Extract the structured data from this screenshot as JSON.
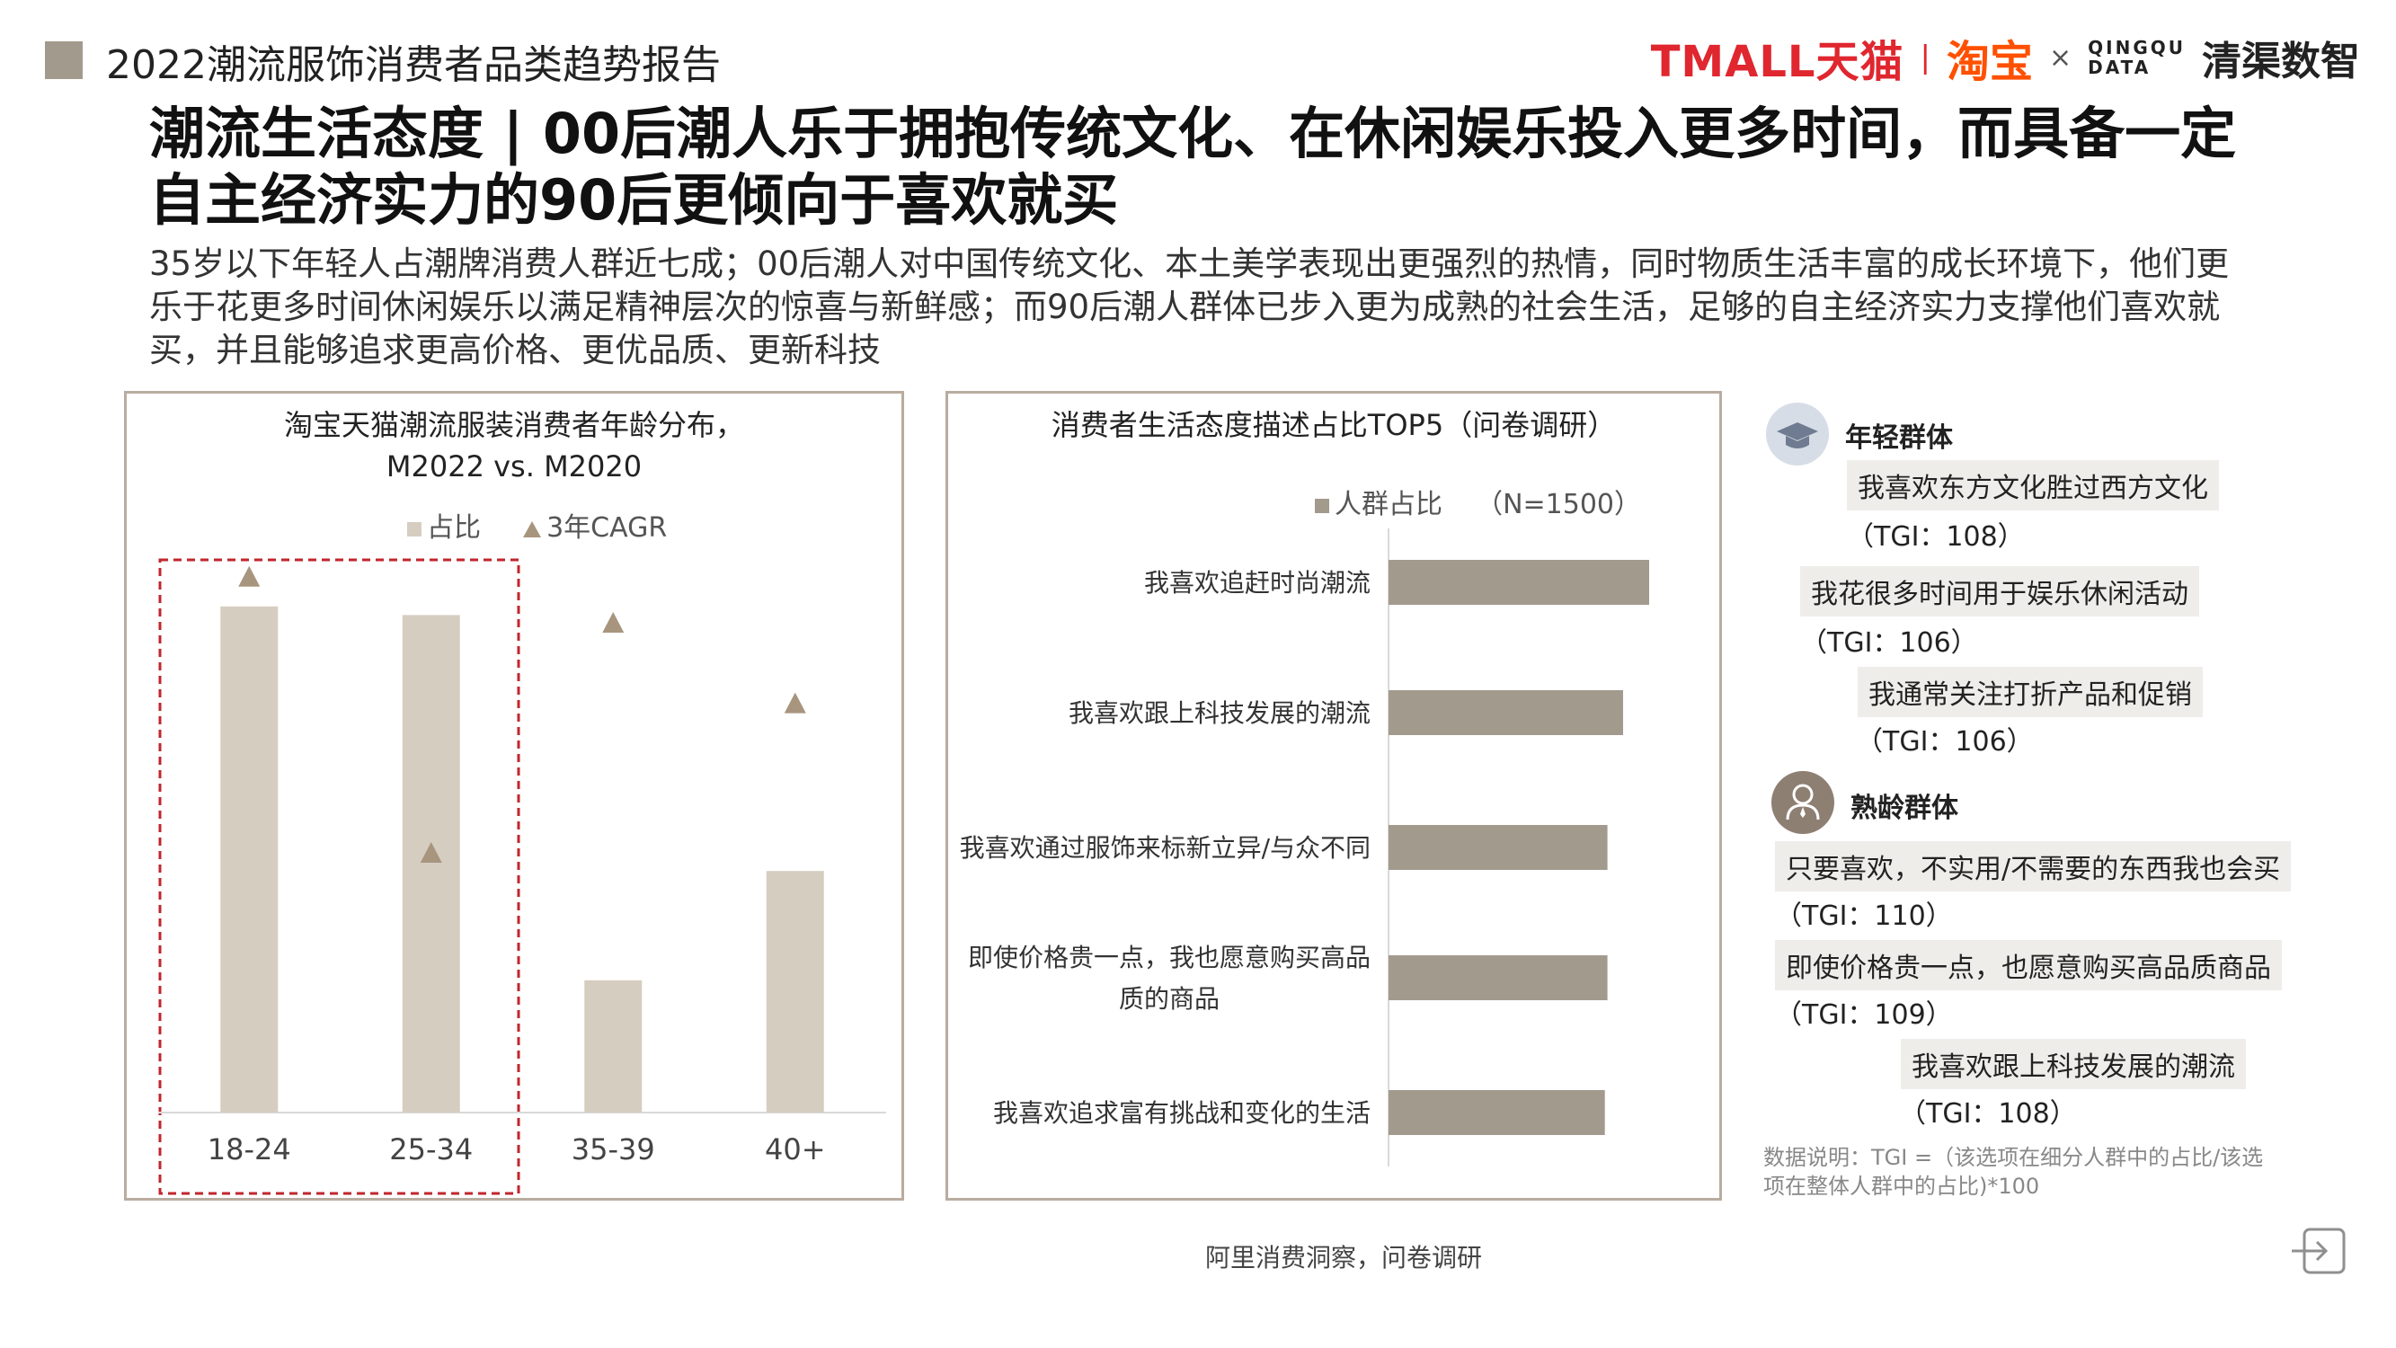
{
  "header": {
    "report_title": "2022潮流服饰消费者品类趋势报告",
    "logos": {
      "tmall": "TMALL天猫",
      "taobao": "淘宝",
      "times": "×",
      "qingqu_en_1": "QINGQU",
      "qingqu_en_2": "DATA",
      "qingqu_cn": "清渠数智"
    },
    "accent_color": "#a39a8e"
  },
  "main": {
    "title": "潮流生活态度 | 00后潮人乐于拥抱传统文化、在休闲娱乐投入更多时间，而具备一定自主经济实力的90后更倾向于喜欢就买",
    "subtitle": "35岁以下年轻人占潮牌消费人群近七成；00后潮人对中国传统文化、本土美学表现出更强烈的热情，同时物质生活丰富的成长环境下，他们更乐于花更多时间休闲娱乐以满足精神层次的惊喜与新鲜感；而90后潮人群体已步入更为成熟的社会生活，足够的自主经济实力支撑他们喜欢就买，并且能够追求更高价格、更优品质、更新科技"
  },
  "chart_data": [
    {
      "type": "bar",
      "title_line1": "淘宝天猫潮流服装消费者年龄分布，",
      "title_line2": "M2022 vs. M2020",
      "legend": [
        "占比",
        "3年CAGR"
      ],
      "categories": [
        "18-24",
        "25-34",
        "35-39",
        "40+"
      ],
      "series": [
        {
          "name": "占比",
          "marker": "bar",
          "values": [
            0.88,
            0.865,
            0.23,
            0.42
          ]
        },
        {
          "name": "3年CAGR",
          "marker": "triangle",
          "values": [
            0.93,
            0.45,
            0.85,
            0.71
          ]
        }
      ],
      "highlight_categories": [
        "18-24",
        "25-34"
      ],
      "ylim": [
        0,
        1
      ],
      "axis_values_shown": false,
      "colors": {
        "bar": "#d6cdc1",
        "triangle": "#a8957e",
        "highlight_box": "#c0262d"
      }
    },
    {
      "type": "bar",
      "orientation": "horizontal",
      "title": "消费者生活态度描述占比TOP5（问卷调研）",
      "legend": [
        "人群占比",
        "（N=1500）"
      ],
      "categories": [
        "我喜欢追赶时尚潮流",
        "我喜欢跟上科技发展的潮流",
        "我喜欢通过服饰来标新立异/与众不同",
        "即使价格贵一点，我也愿意购买高品质的商品",
        "我喜欢追求富有挑战和变化的生活"
      ],
      "category_display": [
        [
          "我喜欢追赶时尚潮流"
        ],
        [
          "我喜欢跟上科技发展的潮流"
        ],
        [
          "我喜欢通过服饰来标新立异/与众不同"
        ],
        [
          "即使价格贵一点，我也愿意购买高品",
          "质的商品"
        ],
        [
          "我喜欢追求富有挑战和变化的生活"
        ]
      ],
      "series": [
        {
          "name": "人群占比",
          "values": [
            1.0,
            0.9,
            0.84,
            0.84,
            0.83
          ]
        }
      ],
      "xlim": [
        0,
        1
      ],
      "axis_values_shown": false,
      "colors": {
        "bar": "#a39a8e"
      }
    }
  ],
  "right_panel": {
    "groups": [
      {
        "title": "年轻群体",
        "icon": "graduation-cap-icon",
        "items": [
          {
            "statement": "我喜欢东方文化胜过西方文化",
            "tgi": "（TGI：108）"
          },
          {
            "statement": "我花很多时间用于娱乐休闲活动",
            "tgi": "（TGI：106）"
          },
          {
            "statement": "我通常关注打折产品和促销",
            "tgi": "（TGI：106）"
          }
        ]
      },
      {
        "title": "熟龄群体",
        "icon": "business-person-icon",
        "items": [
          {
            "statement": "只要喜欢，不实用/不需要的东西我也会买",
            "tgi": "（TGI：110）"
          },
          {
            "statement": "即使价格贵一点，也愿意购买高品质商品",
            "tgi": "（TGI：109）"
          },
          {
            "statement": "我喜欢跟上科技发展的潮流",
            "tgi": "（TGI：108）"
          }
        ]
      }
    ],
    "note": "数据说明：TGI =（该选项在细分人群中的占比/该选项在整体人群中的占比)*100"
  },
  "footer": {
    "source": "阿里消费洞察，问卷调研"
  }
}
